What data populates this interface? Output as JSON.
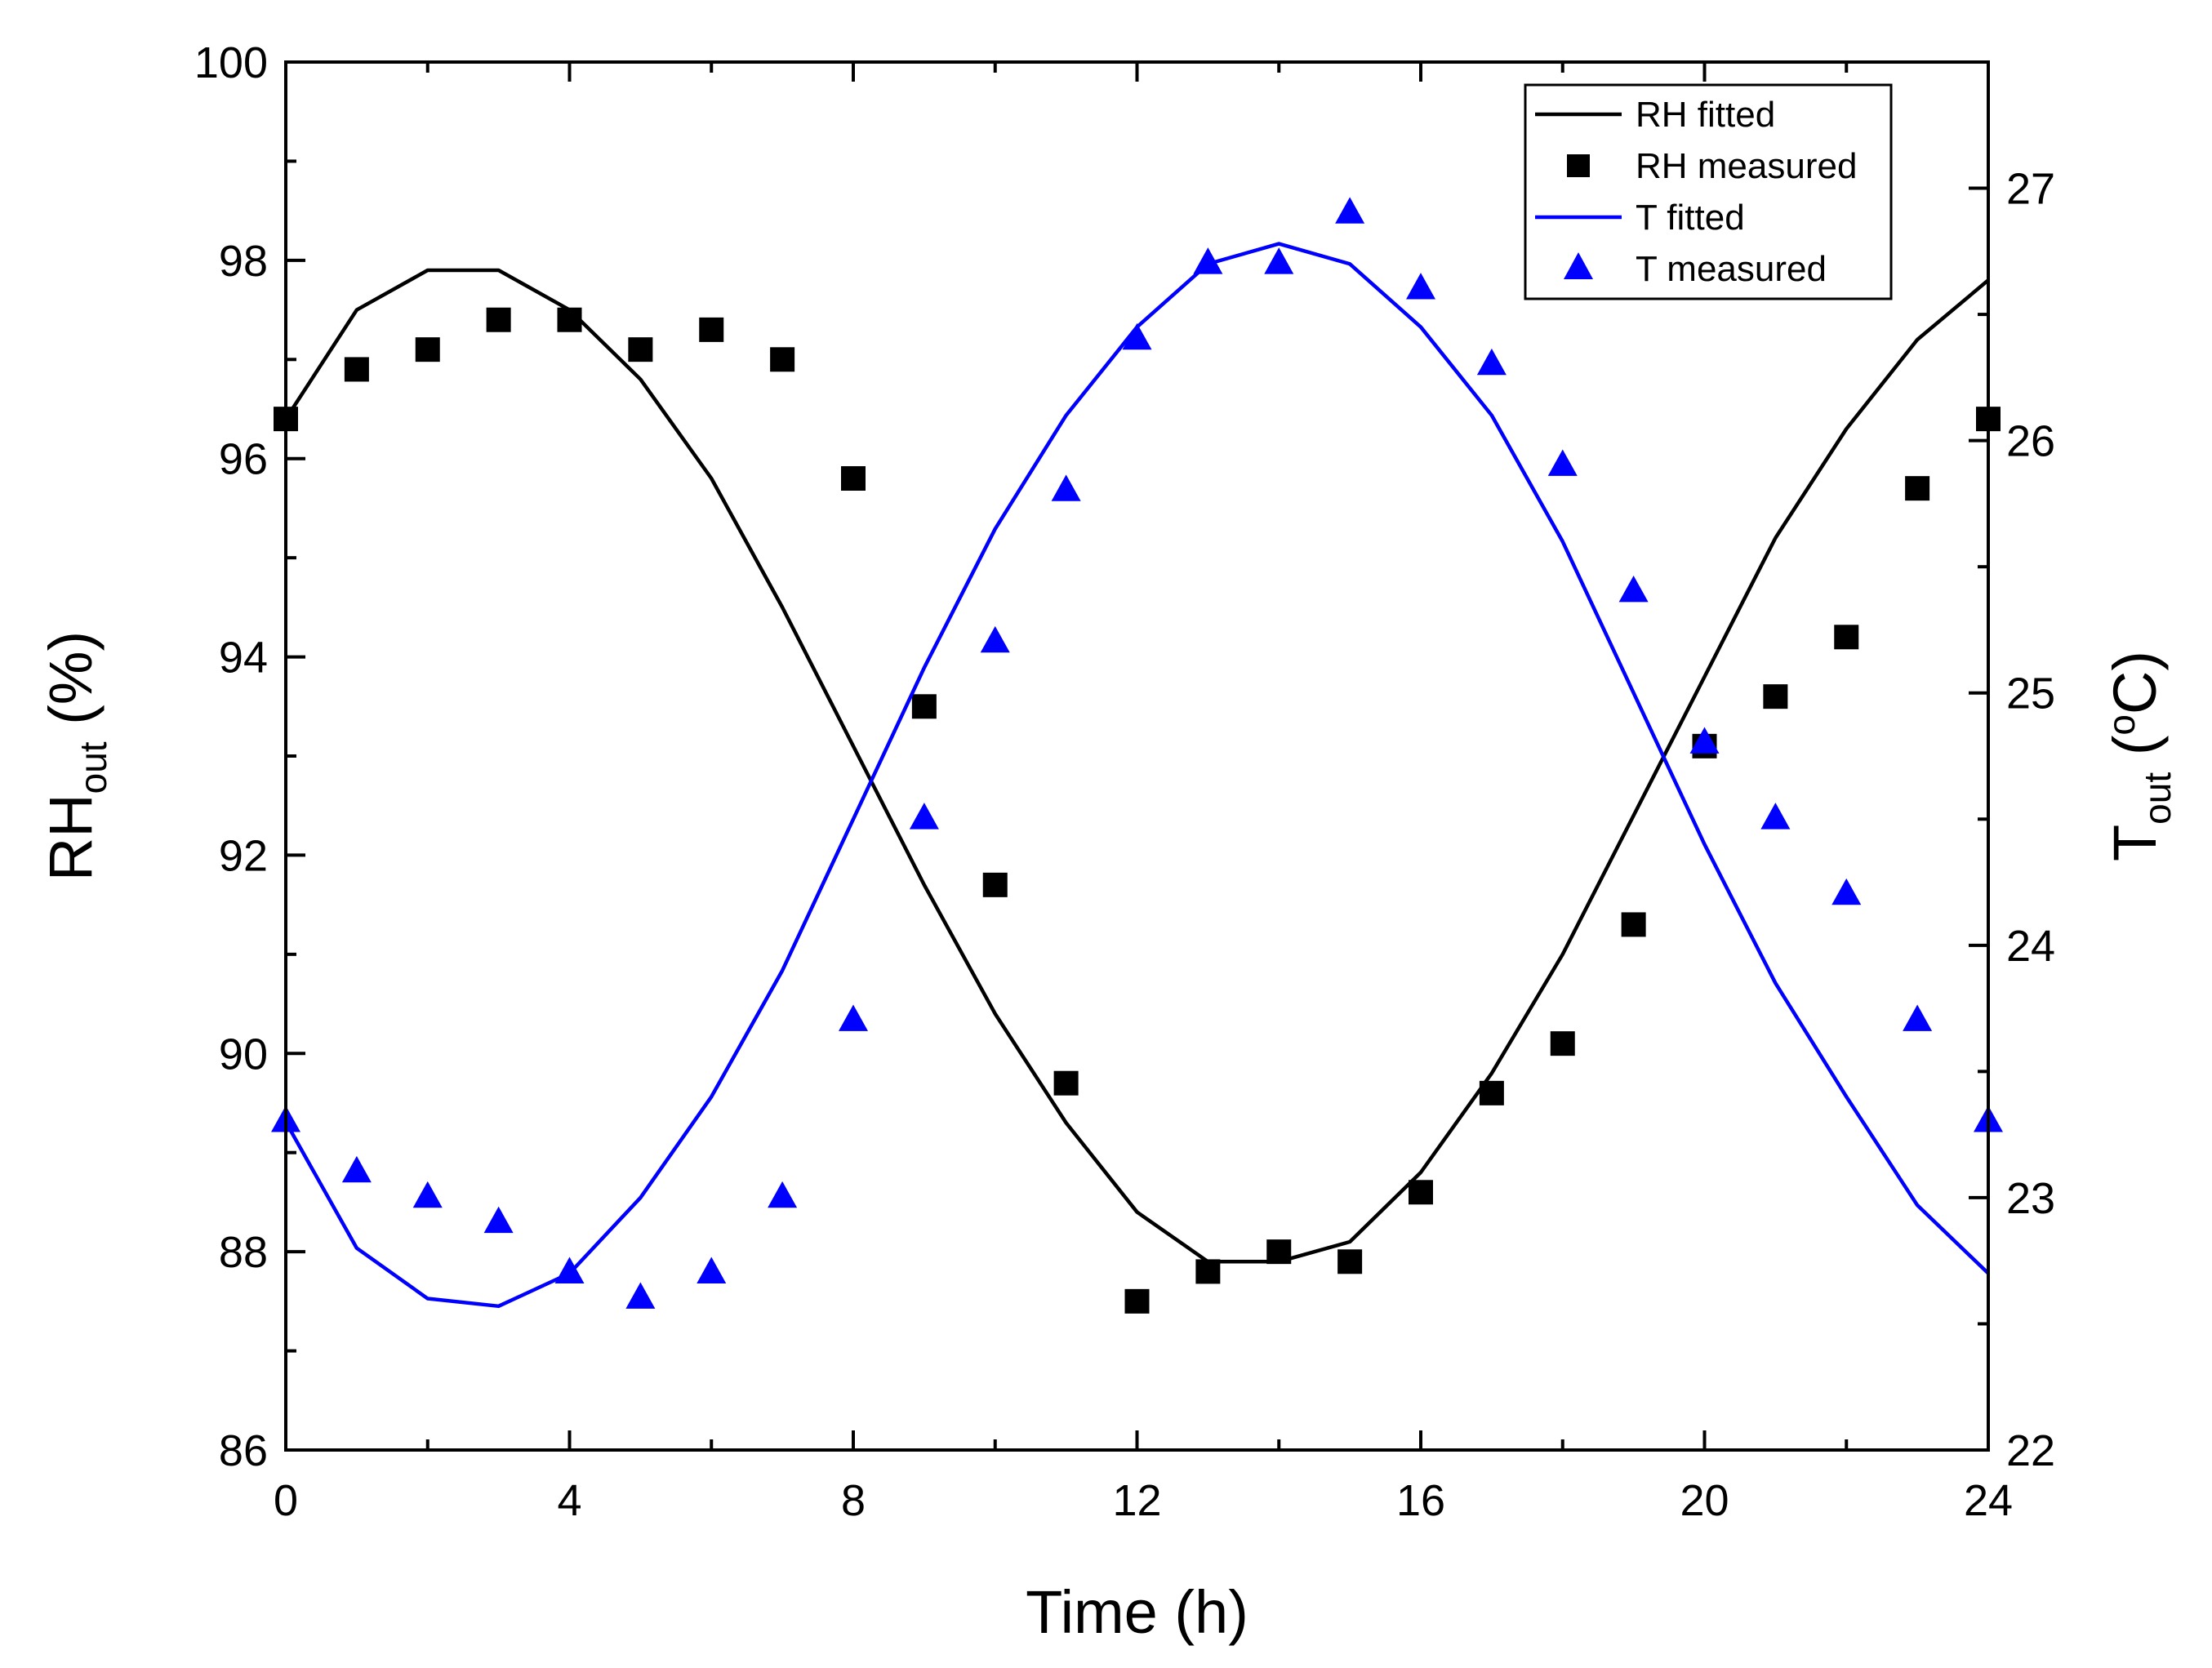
{
  "chart_data": {
    "type": "line",
    "x_axis": {
      "label": "Time (h)",
      "range": [
        0,
        24
      ],
      "ticks": [
        0,
        4,
        8,
        12,
        16,
        20,
        24
      ]
    },
    "y_left": {
      "label_main": "RH",
      "label_sub": "out",
      "label_unit": " (%)",
      "range": [
        86,
        100
      ],
      "ticks": [
        86,
        88,
        90,
        92,
        94,
        96,
        98,
        100
      ]
    },
    "y_right": {
      "label_main": "T",
      "label_sub": "out",
      "label_unit_open": " (",
      "label_sup": "o",
      "label_unit_close": "C)",
      "range": [
        22,
        27.5
      ],
      "ticks": [
        22,
        23,
        24,
        25,
        26,
        27
      ]
    },
    "legend": {
      "position": "top-right",
      "entries": [
        {
          "label": "RH fitted",
          "kind": "line",
          "color": "#000000"
        },
        {
          "label": "RH measured",
          "kind": "square",
          "color": "#000000"
        },
        {
          "label": "T fitted",
          "kind": "line",
          "color": "#0000ff"
        },
        {
          "label": "T measured",
          "kind": "triangle",
          "color": "#0000ff"
        }
      ]
    },
    "series": [
      {
        "name": "RH fitted",
        "axis": "left",
        "kind": "line",
        "color": "#000000",
        "x": [
          0,
          1,
          2,
          3,
          4,
          5,
          6,
          7,
          8,
          9,
          10,
          11,
          12,
          13,
          14,
          15,
          16,
          17,
          18,
          19,
          20,
          21,
          22,
          23,
          24
        ],
        "values": [
          96.4,
          97.5,
          97.9,
          97.9,
          97.5,
          96.8,
          95.8,
          94.5,
          93.1,
          91.7,
          90.4,
          89.3,
          88.4,
          87.9,
          87.9,
          88.1,
          88.8,
          89.8,
          91.0,
          92.4,
          93.8,
          95.2,
          96.3,
          97.2,
          97.8
        ]
      },
      {
        "name": "RH measured",
        "axis": "left",
        "kind": "square",
        "color": "#000000",
        "x": [
          0,
          1,
          2,
          3,
          4,
          5,
          6,
          7,
          8,
          9,
          10,
          11,
          12,
          13,
          14,
          15,
          16,
          17,
          18,
          19,
          20,
          21,
          22,
          23,
          24
        ],
        "values": [
          96.4,
          96.9,
          97.1,
          97.4,
          97.4,
          97.1,
          97.3,
          97.0,
          95.8,
          93.5,
          91.7,
          89.7,
          87.5,
          87.8,
          88.0,
          87.9,
          88.6,
          89.6,
          90.1,
          91.3,
          93.1,
          93.6,
          94.2,
          95.7,
          96.4
        ]
      },
      {
        "name": "T fitted",
        "axis": "right",
        "kind": "line",
        "color": "#0000ff",
        "x": [
          0,
          1,
          2,
          3,
          4,
          5,
          6,
          7,
          8,
          9,
          10,
          11,
          12,
          13,
          14,
          15,
          16,
          17,
          18,
          19,
          20,
          21,
          22,
          23,
          24
        ],
        "values": [
          23.3,
          22.8,
          22.6,
          22.57,
          22.7,
          23.0,
          23.4,
          23.9,
          24.5,
          25.1,
          25.65,
          26.1,
          26.45,
          26.7,
          26.78,
          26.7,
          26.45,
          26.1,
          25.6,
          25.0,
          24.4,
          23.85,
          23.4,
          22.97,
          22.7
        ]
      },
      {
        "name": "T measured",
        "axis": "right",
        "kind": "triangle",
        "color": "#0000ff",
        "x": [
          0,
          1,
          2,
          3,
          4,
          5,
          6,
          7,
          8,
          9,
          10,
          11,
          12,
          13,
          14,
          15,
          16,
          17,
          18,
          19,
          20,
          21,
          22,
          23,
          24
        ],
        "values": [
          23.3,
          23.1,
          23.0,
          22.9,
          22.7,
          22.6,
          22.7,
          23.0,
          23.7,
          24.5,
          25.2,
          25.8,
          26.4,
          26.7,
          26.7,
          26.9,
          26.6,
          26.3,
          25.9,
          25.4,
          24.8,
          24.5,
          24.2,
          23.7,
          23.3
        ]
      }
    ]
  }
}
